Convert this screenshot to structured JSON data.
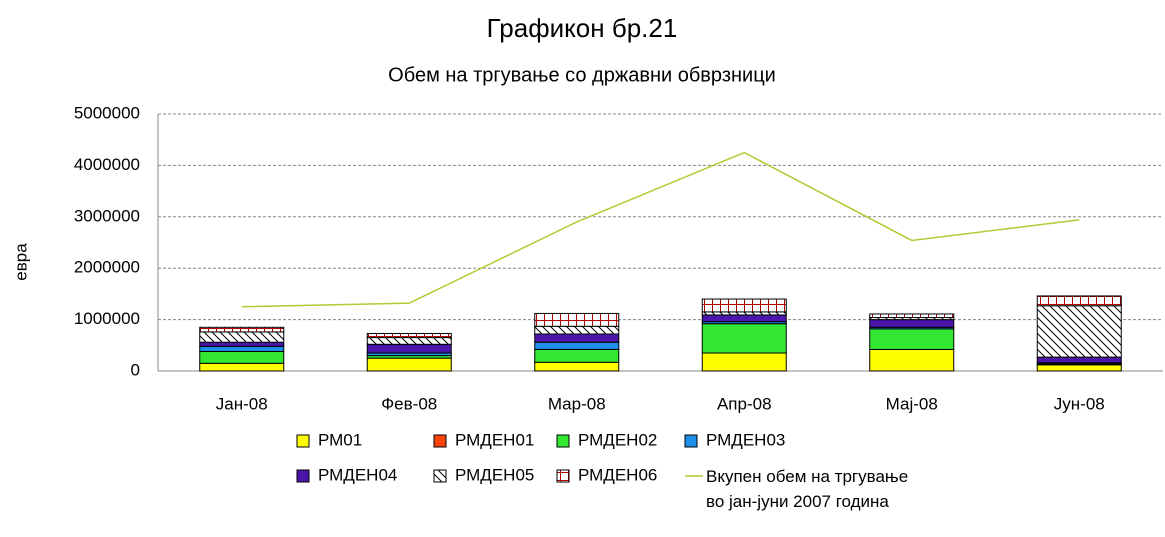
{
  "chart_data": {
    "type": "bar",
    "stacked": true,
    "title": "Графикон бр.21",
    "subtitle": "Обем на тргување со државни обврзници",
    "y_label": "евра",
    "categories": [
      "Јан-08",
      "Фев-08",
      "Мар-08",
      "Апр-08",
      "Мај-08",
      "Јун-08"
    ],
    "ylim": [
      0,
      5000000
    ],
    "yticks": [
      0,
      1000000,
      2000000,
      3000000,
      4000000,
      5000000
    ],
    "grid": true,
    "legend": "bottom",
    "series": [
      {
        "name": "РМ01",
        "color": "#ffff00",
        "values": [
          150000,
          250000,
          170000,
          350000,
          420000,
          120000
        ]
      },
      {
        "name": "РМДЕН01",
        "color": "#ff420e",
        "values": [
          0,
          0,
          0,
          0,
          0,
          0
        ]
      },
      {
        "name": "РМДЕН02",
        "color": "#33e833",
        "values": [
          230000,
          50000,
          250000,
          570000,
          400000,
          20000
        ]
      },
      {
        "name": "РМДЕН03",
        "color": "#1e8fe8",
        "values": [
          100000,
          50000,
          140000,
          40000,
          30000,
          20000
        ]
      },
      {
        "name": "РМДЕН04",
        "color": "#4a15a8",
        "values": [
          80000,
          170000,
          160000,
          130000,
          150000,
          110000
        ]
      },
      {
        "name": "РМДЕН05",
        "color": "#000000",
        "pattern": "hatch",
        "values": [
          200000,
          130000,
          150000,
          60000,
          40000,
          1000000
        ]
      },
      {
        "name": "РМДЕН06",
        "color": "#b00000",
        "pattern": "grid",
        "values": [
          90000,
          80000,
          250000,
          250000,
          70000,
          190000
        ]
      },
      {
        "name": "Вкупен обем на тргување во јан-јуни 2007 година",
        "type": "line",
        "color": "#b5c933",
        "values": [
          1250000,
          1320000,
          2900000,
          4250000,
          2540000,
          2940000
        ]
      }
    ]
  }
}
